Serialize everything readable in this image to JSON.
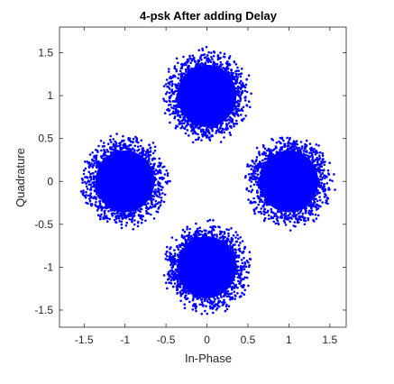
{
  "chart_data": {
    "type": "scatter",
    "title": "4-psk After adding Delay",
    "xlabel": "In-Phase",
    "ylabel": "Quadrature",
    "xlim": [
      -1.8,
      1.7
    ],
    "ylim": [
      -1.7,
      1.8
    ],
    "xticks": [
      -1.5,
      -1,
      -0.5,
      0,
      0.5,
      1,
      1.5
    ],
    "xtick_labels": [
      "-1.5",
      "-1",
      "-0.5",
      "0",
      "0.5",
      "1",
      "1.5"
    ],
    "yticks": [
      -1.5,
      -1,
      -0.5,
      0,
      0.5,
      1,
      1.5
    ],
    "ytick_labels": [
      "-1.5",
      "-1",
      "-0.5",
      "0",
      "0.5",
      "1",
      "1.5"
    ],
    "grid": false,
    "marker_color": "#0000ff",
    "clusters": [
      {
        "center": [
          0,
          1
        ],
        "spread": 0.5
      },
      {
        "center": [
          -1,
          0
        ],
        "spread": 0.5
      },
      {
        "center": [
          1,
          0
        ],
        "spread": 0.5
      },
      {
        "center": [
          0,
          -1
        ],
        "spread": 0.5
      }
    ]
  }
}
